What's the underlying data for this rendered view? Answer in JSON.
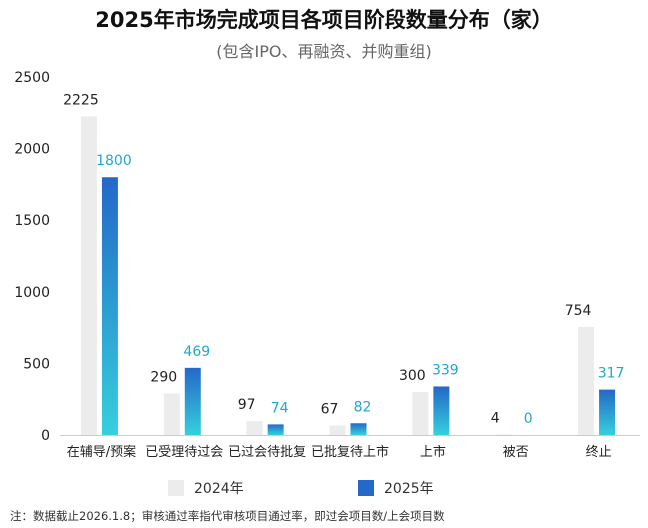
{
  "colors": {
    "series_2024": "#ececec",
    "series_2025_top": "#2468c8",
    "series_2025_bottom": "#35d0dc",
    "label_2024": "#222222",
    "label_2025": "#22a6d0",
    "axis": "#cccccc"
  },
  "chart_data": {
    "type": "bar",
    "title": "2025年市场完成项目各项目阶段数量分布（家）",
    "subtitle": "(包含IPO、再融资、并购重组)",
    "categories": [
      "在辅导/预案",
      "已受理待过会",
      "已过会待批复",
      "已批复待上市",
      "上市",
      "被否",
      "终止"
    ],
    "series": [
      {
        "name": "2024年",
        "values": [
          2225,
          290,
          97,
          67,
          300,
          4,
          754
        ]
      },
      {
        "name": "2025年",
        "values": [
          1800,
          469,
          74,
          82,
          339,
          0,
          317
        ]
      }
    ],
    "ylim": [
      0,
      2500
    ],
    "yticks": [
      "0",
      "500",
      "1000",
      "1500",
      "2000",
      "2500"
    ],
    "grid": false,
    "legend_position": "bottom"
  },
  "footnote": "注：数据截止2026.1.8；审核通过率指代审核项目通过率，即过会项目数/上会项目数"
}
